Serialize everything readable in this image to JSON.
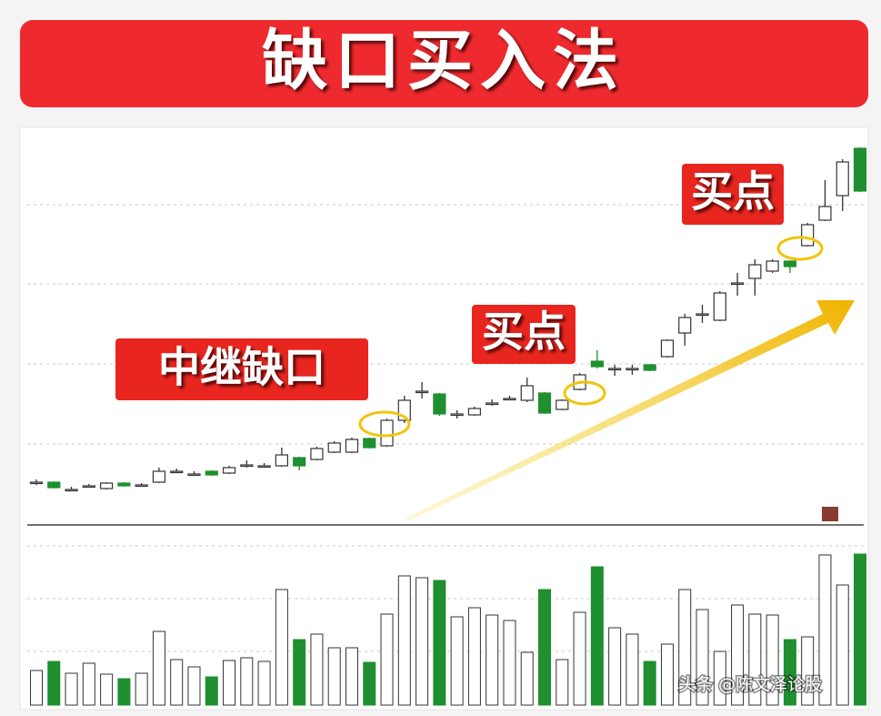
{
  "chart_data": {
    "type": "candlestick",
    "title": "缺口买入法",
    "annotations": [
      "中继缺口",
      "买点",
      "买点"
    ],
    "up_color": "#ffffff",
    "up_edge_color": "#333333",
    "down_color": "#1f8f2f",
    "ylim": [
      0,
      430
    ],
    "volume_ylim": [
      0,
      175
    ],
    "open": [
      45,
      45,
      37,
      41,
      38,
      44,
      42,
      45,
      57,
      54,
      57,
      55,
      64,
      63,
      63,
      72,
      70,
      78,
      78,
      93,
      85,
      113,
      145,
      142,
      120,
      119,
      132,
      137,
      135,
      143,
      125,
      147,
      178,
      170,
      170,
      174,
      183,
      209,
      230,
      223,
      264,
      269,
      277,
      288,
      305,
      333,
      360,
      412
    ],
    "high": [
      48,
      46,
      40,
      43,
      45,
      45,
      44,
      61,
      60,
      57,
      58,
      63,
      69,
      66,
      83,
      73,
      84,
      90,
      94,
      94,
      115,
      140,
      155,
      143,
      124,
      128,
      136,
      140,
      160,
      144,
      136,
      165,
      190,
      174,
      174,
      175,
      202,
      230,
      240,
      255,
      275,
      290,
      290,
      289,
      330,
      377,
      400,
      413
    ],
    "low": [
      42,
      38,
      35,
      39,
      37,
      40,
      40,
      44,
      55,
      52,
      52,
      54,
      61,
      61,
      62,
      58,
      69,
      77,
      77,
      82,
      84,
      110,
      137,
      118,
      115,
      118,
      129,
      135,
      133,
      120,
      124,
      146,
      170,
      162,
      163,
      167,
      182,
      195,
      220,
      222,
      250,
      250,
      275,
      275,
      304,
      332,
      343,
      364
    ],
    "close": [
      45,
      39,
      37,
      41,
      44,
      41,
      42,
      57,
      57,
      54,
      53,
      61,
      64,
      63,
      75,
      63,
      82,
      88,
      92,
      83,
      113,
      135,
      145,
      120,
      120,
      126,
      132,
      137,
      151,
      121,
      135,
      163,
      172,
      170,
      170,
      168,
      201,
      226,
      230,
      253,
      264,
      284,
      288,
      282,
      328,
      348,
      397,
      365
    ],
    "volume": [
      38,
      48,
      35,
      46,
      34,
      29,
      35,
      81,
      50,
      42,
      31,
      49,
      52,
      48,
      127,
      72,
      78,
      63,
      63,
      47,
      100,
      142,
      140,
      137,
      97,
      107,
      99,
      93,
      58,
      127,
      50,
      102,
      152,
      85,
      78,
      48,
      67,
      127,
      105,
      59,
      110,
      100,
      99,
      72,
      75,
      165,
      132,
      166
    ]
  },
  "watermark": "头条 @陈文泽论股"
}
